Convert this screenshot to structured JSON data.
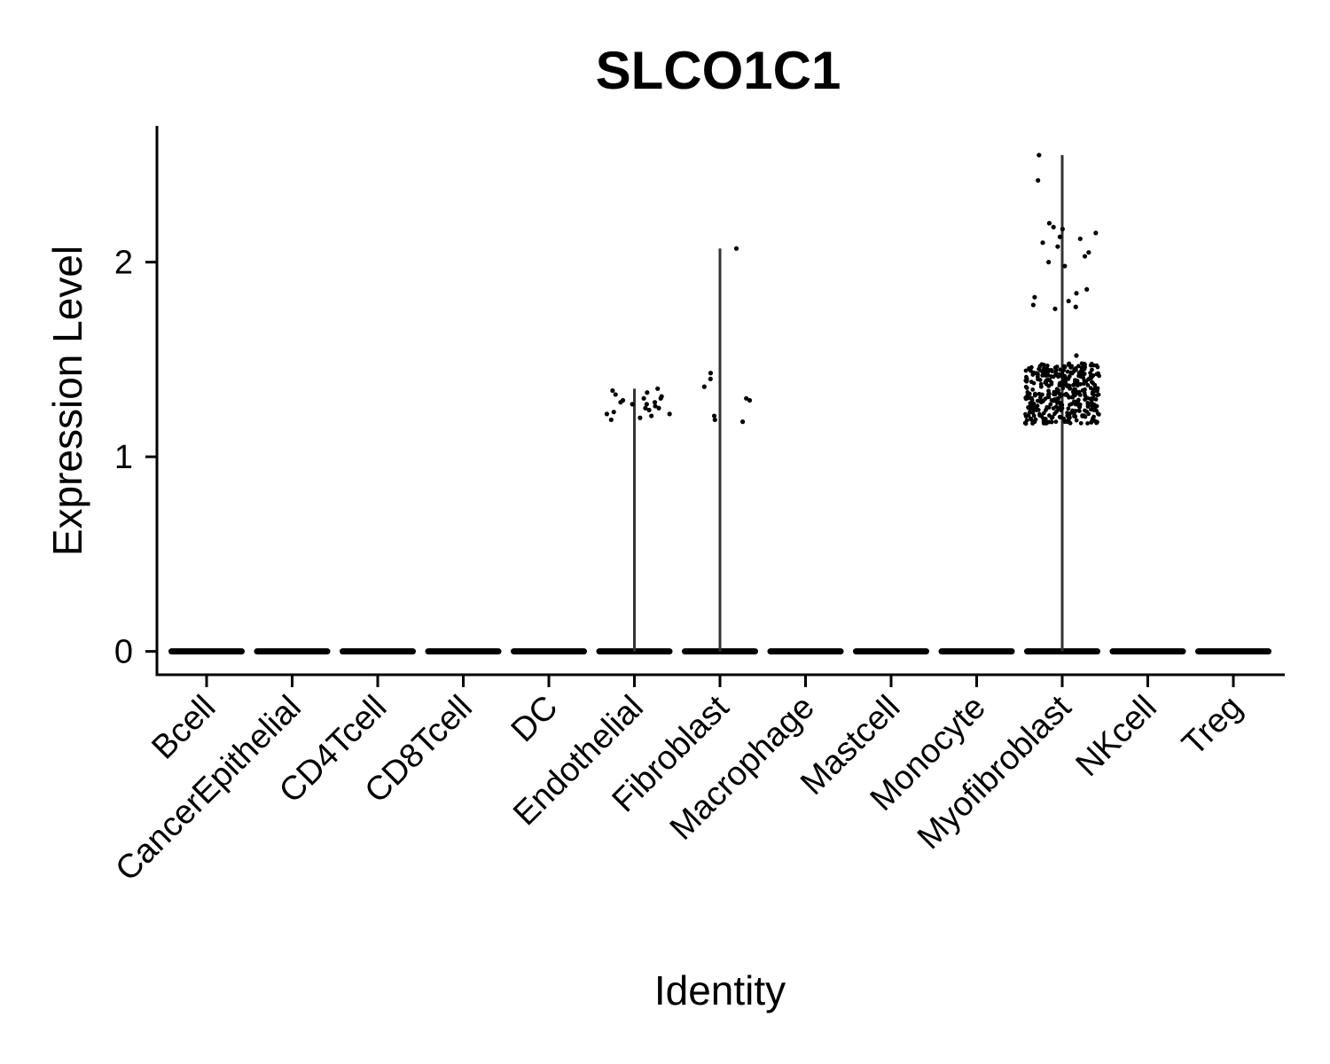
{
  "chart_data": {
    "type": "violin",
    "title": "SLCO1C1",
    "xlabel": "Identity",
    "ylabel": "Expression Level",
    "categories": [
      "Bcell",
      "CancerEpithelial",
      "CD4Tcell",
      "CD8Tcell",
      "DC",
      "Endothelial",
      "Fibroblast",
      "Macrophage",
      "Mastcell",
      "Monocyte",
      "Myofibroblast",
      "NKcell",
      "Treg"
    ],
    "ylim": [
      -0.12,
      2.7
    ],
    "yticks": [
      0,
      1,
      2
    ],
    "max_values": [
      0,
      0,
      0,
      0,
      0,
      1.35,
      2.07,
      0,
      0,
      0,
      2.55,
      0,
      0
    ],
    "nonzero_points": {
      "Endothelial": [
        1.25,
        1.28,
        1.3,
        1.22,
        1.33,
        1.27,
        1.19,
        1.31,
        1.24,
        1.35,
        1.21,
        1.29,
        1.26,
        1.34,
        1.2,
        1.32,
        1.23,
        1.28,
        1.3,
        1.25,
        1.22,
        1.27
      ],
      "Fibroblast": [
        2.07,
        1.4,
        1.36,
        1.43,
        1.29,
        1.3,
        1.21,
        1.19,
        1.18
      ],
      "Myofibroblast": [
        2.55,
        2.42,
        2.2,
        2.18,
        2.17,
        2.15,
        2.13,
        2.12,
        2.1,
        2.08,
        2.05,
        2.03,
        2.0,
        1.98,
        1.86,
        1.84,
        1.82,
        1.8,
        1.78,
        1.77,
        1.76,
        1.52
      ]
    },
    "points_color": "#000000",
    "grid": false,
    "legend": "none"
  }
}
